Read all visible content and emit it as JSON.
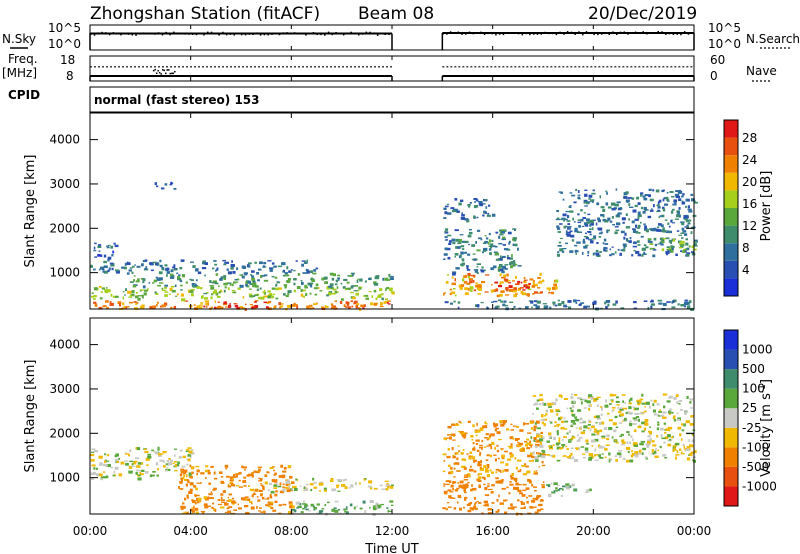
{
  "header": {
    "station": "Zhongshan Station (fitACF)",
    "beam": "Beam 08",
    "date": "20/Dec/2019",
    "mode": "normal (fast stereo) 153"
  },
  "left_labels": {
    "nsky": "N.Sky",
    "freq": "Freq.",
    "freq_unit": "[MHz]",
    "cpid": "CPID"
  },
  "right_labels": {
    "nsearch": "N.Search",
    "nave": "Nave"
  },
  "colors": {
    "power": [
      "#1a2fd8",
      "#2a4fb2",
      "#2f6f9e",
      "#3e8c6c",
      "#5aa83c",
      "#a6cf1c",
      "#f0b800",
      "#f08000",
      "#e85010",
      "#e01818"
    ],
    "velocity": [
      "#e01818",
      "#e85010",
      "#f08000",
      "#f0b800",
      "#c8c8c4",
      "#5aa83c",
      "#3e8c6c",
      "#2a4fb2",
      "#1a2fd8"
    ]
  },
  "chart_data": [
    {
      "type": "line",
      "title": "N.Sky / N.Search",
      "ytick_labels": [
        "10^5",
        "10^0"
      ],
      "ytick_labels_right": [
        "10^5",
        "10^0"
      ],
      "x_hours": [
        0,
        12,
        12,
        14,
        14,
        24
      ],
      "series": [
        {
          "name": "N.Sky",
          "values": [
            3.3,
            3.2,
            null,
            null,
            3.4,
            3.3
          ]
        },
        {
          "name": "N.Search",
          "values": [
            0.0,
            0.0,
            null,
            null,
            0.0,
            0.0
          ]
        }
      ],
      "gap_hours": [
        12,
        14
      ]
    },
    {
      "type": "line",
      "title": "Freq. [MHz] / Nave",
      "ylim_left": [
        8,
        18
      ],
      "ylim_right": [
        0,
        60
      ],
      "ytick_labels": [
        "18",
        "8"
      ],
      "ytick_labels_right": [
        "60",
        "0"
      ],
      "series": [
        {
          "name": "Freq.",
          "x_hours": [
            0,
            12,
            14,
            24
          ],
          "values": [
            10.0,
            10.0,
            10.0,
            10.0
          ]
        },
        {
          "name": "Nave",
          "x_hours": [
            0,
            12,
            14,
            24
          ],
          "values": [
            34,
            34,
            34,
            34
          ]
        }
      ],
      "gap_hours": [
        12,
        14
      ]
    },
    {
      "type": "heatmap",
      "title": "Power",
      "ylabel": "Slant Range [km]",
      "xlim_hours": [
        0,
        24
      ],
      "ylim": [
        180,
        4600
      ],
      "yticks": [
        1000,
        2000,
        3000,
        4000
      ],
      "colorbar": {
        "label": "Power [dB]",
        "ticks": [
          4,
          8,
          12,
          16,
          20,
          24,
          28
        ],
        "range": [
          0,
          30
        ]
      },
      "features": [
        {
          "t0": 0.0,
          "t1": 12.0,
          "r0": 200,
          "r1": 380,
          "level": 22
        },
        {
          "t0": 0.0,
          "t1": 12.0,
          "r0": 420,
          "r1": 700,
          "level": 15
        },
        {
          "t0": 1.5,
          "t1": 12.0,
          "r0": 700,
          "r1": 1000,
          "level": 11
        },
        {
          "t0": 0.0,
          "t1": 9.0,
          "r0": 1000,
          "r1": 1300,
          "level": 7
        },
        {
          "t0": 0.0,
          "t1": 1.0,
          "r0": 1300,
          "r1": 1700,
          "level": 6
        },
        {
          "t0": 4.5,
          "t1": 7.0,
          "r0": 200,
          "r1": 380,
          "level": 26
        },
        {
          "t0": 10.0,
          "t1": 12.0,
          "r0": 200,
          "r1": 380,
          "level": 24
        },
        {
          "t0": 2.5,
          "t1": 3.5,
          "r0": 2900,
          "r1": 3050,
          "level": 5
        },
        {
          "t0": 14.0,
          "t1": 24.0,
          "r0": 200,
          "r1": 400,
          "level": 8
        },
        {
          "t0": 14.0,
          "t1": 18.5,
          "r0": 500,
          "r1": 1000,
          "level": 21
        },
        {
          "t0": 16.0,
          "t1": 17.6,
          "r0": 600,
          "r1": 850,
          "level": 27
        },
        {
          "t0": 14.0,
          "t1": 17.0,
          "r0": 1000,
          "r1": 2000,
          "level": 9
        },
        {
          "t0": 14.0,
          "t1": 16.0,
          "r0": 2200,
          "r1": 2700,
          "level": 7
        },
        {
          "t0": 18.5,
          "t1": 24.0,
          "r0": 1400,
          "r1": 2900,
          "level": 8
        },
        {
          "t0": 22.0,
          "t1": 24.0,
          "r0": 1500,
          "r1": 1800,
          "level": 14
        }
      ]
    },
    {
      "type": "heatmap",
      "title": "Velocity",
      "ylabel": "Slant Range [km]",
      "xlabel": "Time UT",
      "xticks": [
        "00:00",
        "04:00",
        "08:00",
        "12:00",
        "16:00",
        "20:00",
        "00:00"
      ],
      "xlim_hours": [
        0,
        24
      ],
      "ylim": [
        180,
        4600
      ],
      "yticks": [
        1000,
        2000,
        3000,
        4000
      ],
      "colorbar": {
        "label": "Velocity [m s^-1]",
        "ticks": [
          -1000,
          -500,
          -100,
          -25,
          25,
          100,
          500,
          1000
        ]
      },
      "features": [
        {
          "t0": 0.0,
          "t1": 4.0,
          "r0": 1000,
          "r1": 1700,
          "value": 0
        },
        {
          "t0": 3.5,
          "t1": 8.0,
          "r0": 200,
          "r1": 1300,
          "value": -150
        },
        {
          "t0": 8.0,
          "t1": 12.0,
          "r0": 200,
          "r1": 500,
          "value": 60
        },
        {
          "t0": 7.0,
          "t1": 12.0,
          "r0": 700,
          "r1": 1000,
          "value": 0
        },
        {
          "t0": 14.0,
          "t1": 18.0,
          "r0": 200,
          "r1": 1000,
          "value": -200
        },
        {
          "t0": 14.0,
          "t1": 18.0,
          "r0": 1000,
          "r1": 2300,
          "value": -120
        },
        {
          "t0": 17.5,
          "t1": 24.0,
          "r0": 1400,
          "r1": 2900,
          "value": 0
        },
        {
          "t0": 18.0,
          "t1": 20.0,
          "r0": 600,
          "r1": 900,
          "value": 60
        }
      ]
    }
  ],
  "axes": {
    "xlabel": "Time UT",
    "xticks": [
      "00:00",
      "04:00",
      "08:00",
      "12:00",
      "16:00",
      "20:00",
      "00:00"
    ],
    "yticks_range": [
      "1000",
      "2000",
      "3000",
      "4000"
    ],
    "power_ticks": [
      "4",
      "8",
      "12",
      "16",
      "20",
      "24",
      "28"
    ],
    "velocity_ticks": [
      "1000",
      "500",
      "100",
      "25",
      "-25",
      "-100",
      "-500",
      "-1000"
    ],
    "power_label": "Power [dB]",
    "velocity_label": "Velocity [m s",
    "velocity_label_sup": "-1",
    "velocity_label_end": "]",
    "range_label": "Slant Range [km]"
  }
}
